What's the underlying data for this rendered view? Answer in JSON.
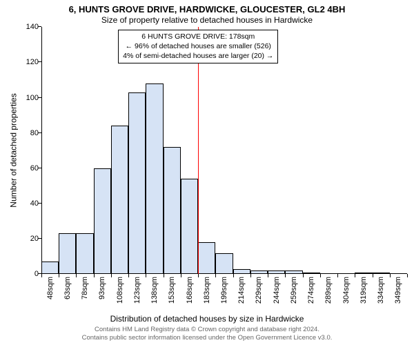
{
  "title": "6, HUNTS GROVE DRIVE, HARDWICKE, GLOUCESTER, GL2 4BH",
  "subtitle": "Size of property relative to detached houses in Hardwicke",
  "ylabel": "Number of detached properties",
  "xlabel": "Distribution of detached houses by size in Hardwicke",
  "attribution_line1": "Contains HM Land Registry data © Crown copyright and database right 2024.",
  "attribution_line2": "Contains public sector information licensed under the Open Government Licence v3.0.",
  "chart": {
    "type": "histogram",
    "ylim": [
      0,
      140
    ],
    "yticks": [
      0,
      20,
      40,
      60,
      80,
      100,
      120,
      140
    ],
    "xtick_labels": [
      "48sqm",
      "63sqm",
      "78sqm",
      "93sqm",
      "108sqm",
      "123sqm",
      "138sqm",
      "153sqm",
      "168sqm",
      "183sqm",
      "199sqm",
      "214sqm",
      "229sqm",
      "244sqm",
      "259sqm",
      "274sqm",
      "289sqm",
      "304sqm",
      "319sqm",
      "334sqm",
      "349sqm"
    ],
    "values": [
      7,
      23,
      23,
      60,
      84,
      103,
      108,
      72,
      54,
      18,
      12,
      3,
      2,
      2,
      2,
      1,
      0,
      0,
      1,
      1,
      0
    ],
    "bar_fill": "#d6e3f5",
    "bar_stroke": "#000000",
    "bar_stroke_width": 0.5,
    "background": "#ffffff",
    "axis_color": "#000000",
    "tick_fontsize": 11,
    "label_fontsize": 12,
    "title_fontsize": 13,
    "marker": {
      "index_after": 9,
      "color": "#ff0000",
      "width": 1
    },
    "info_box": {
      "line1": "6 HUNTS GROVE DRIVE: 178sqm",
      "line2": "← 96% of detached houses are smaller (526)",
      "line3": "4% of semi-detached houses are larger (20) →",
      "border_color": "#000000",
      "background": "#ffffff",
      "fontsize": 10.5
    }
  }
}
